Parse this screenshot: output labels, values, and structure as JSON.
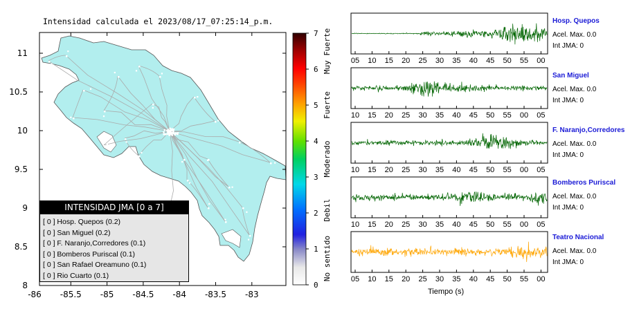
{
  "map": {
    "title": "Intensidad calculada el 2023/08/17_07:25:14_p.m.",
    "y_ticks": [
      "11",
      "10.5",
      "10",
      "9.5",
      "9",
      "8.5",
      "8"
    ],
    "x_ticks": [
      "-86",
      "-85.5",
      "-85",
      "-84.5",
      "-84",
      "-83.5",
      "-83"
    ],
    "land_color": "#b2eeee"
  },
  "scale": {
    "ticks": [
      "7",
      "6",
      "5",
      "4",
      "3",
      "2",
      "1",
      "0"
    ],
    "labels": [
      "Muy Fuerte",
      "Fuerte",
      "Moderado",
      "Debil",
      "No sentido"
    ]
  },
  "legend": {
    "header": "INTENSIDAD JMA [0 a 7]",
    "items": [
      "[ 0 ]  Hosp. Quepos (0.2)",
      "[ 0 ]  San Miguel (0.2)",
      "[ 0 ]  F. Naranjo,Corredores (0.1)",
      "[ 0 ]  Bomberos Puriscal (0.1)",
      "[ 0 ]  San Rafael Oreamuno (0.1)",
      "[ 0 ]  Rio Cuarto (0.1)"
    ]
  },
  "waveforms": [
    {
      "name": "Hosp. Quepos",
      "accel": "Acel. Max. 0.0",
      "int": "Int JMA: 0",
      "color": "#006400",
      "ticks": [
        "05",
        "10",
        "15",
        "20",
        "25",
        "30",
        "35",
        "40",
        "45",
        "50",
        "55",
        "00"
      ]
    },
    {
      "name": "San Miguel",
      "accel": "Acel. Max. 0.0",
      "int": "Int JMA: 0",
      "color": "#006400",
      "ticks": [
        "10",
        "15",
        "20",
        "25",
        "30",
        "35",
        "40",
        "45",
        "50",
        "55",
        "00",
        "05"
      ]
    },
    {
      "name": "F. Naranjo,Corredores",
      "accel": "Acel. Max. 0.0",
      "int": "Int JMA: 0",
      "color": "#006400",
      "ticks": [
        "10",
        "15",
        "20",
        "25",
        "30",
        "35",
        "40",
        "45",
        "50",
        "55",
        "00",
        "05"
      ]
    },
    {
      "name": "Bomberos Puriscal",
      "accel": "Acel. Max. 0.0",
      "int": "Int JMA: 0",
      "color": "#006400",
      "ticks": [
        "10",
        "15",
        "20",
        "25",
        "30",
        "35",
        "40",
        "45",
        "50",
        "55",
        "00",
        "05"
      ]
    },
    {
      "name": "Teatro Nacional",
      "accel": "Acel. Max. 0.0",
      "int": "Int JMA: 0",
      "color": "#ffa500",
      "ticks": [
        "05",
        "10",
        "15",
        "20",
        "25",
        "30",
        "35",
        "40",
        "45",
        "50",
        "55",
        "00"
      ]
    }
  ],
  "time_label": "Tiempo (s)"
}
